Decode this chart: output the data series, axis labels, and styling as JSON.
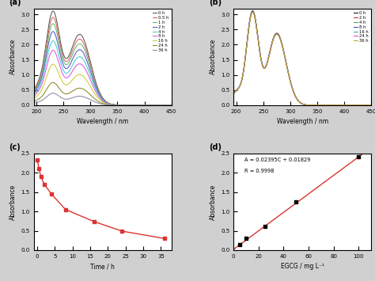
{
  "panel_a_label": "(a)",
  "panel_b_label": "(b)",
  "panel_c_label": "(c)",
  "panel_d_label": "(d)",
  "legend_a": [
    "0 h",
    "0.5 h",
    "1 h",
    "2 h",
    "4 h",
    "8 h",
    "16 h",
    "24 h",
    "36 h"
  ],
  "colors_a": [
    "#555555",
    "#dd6666",
    "#66bb66",
    "#5555cc",
    "#44cccc",
    "#dd55dd",
    "#cccc33",
    "#888822",
    "#8888aa"
  ],
  "legend_b": [
    "0 h",
    "2 h",
    "4 h",
    "8 h",
    "16 h",
    "24 h",
    "36 h"
  ],
  "colors_b": [
    "#111111",
    "#cc3333",
    "#44aa44",
    "#4444bb",
    "#33aaaa",
    "#dd44bb",
    "#bbaa22"
  ],
  "scales_a": [
    3.0,
    2.8,
    2.6,
    2.35,
    2.05,
    1.75,
    1.3,
    0.72,
    0.38
  ],
  "cutoffs_a": [
    370,
    368,
    367,
    366,
    365,
    364,
    363,
    362,
    361
  ],
  "scales_b": [
    3.05,
    3.05,
    3.04,
    3.03,
    3.02,
    3.01,
    3.0
  ],
  "time_c": [
    0,
    0.5,
    1,
    2,
    4,
    8,
    16,
    24,
    36
  ],
  "abs_c": [
    2.33,
    2.1,
    1.9,
    1.7,
    1.45,
    1.05,
    0.74,
    0.49,
    0.3
  ],
  "color_c": "#dd3333",
  "egcg_d": [
    5,
    10,
    25,
    50,
    100
  ],
  "abs_d": [
    0.14,
    0.3,
    0.62,
    1.24,
    2.41
  ],
  "color_d": "#dd3333",
  "eq_text": "A = 0.02395C + 0.01829",
  "r_text": "R = 0.9998",
  "xlabel_wavelength": "Wavelength / nm",
  "ylabel_absorbance": "Absorbance",
  "xlabel_time": "Time / h",
  "xlabel_egcg": "EGCG / mg L⁻¹",
  "background_color": "#d0d0d0"
}
